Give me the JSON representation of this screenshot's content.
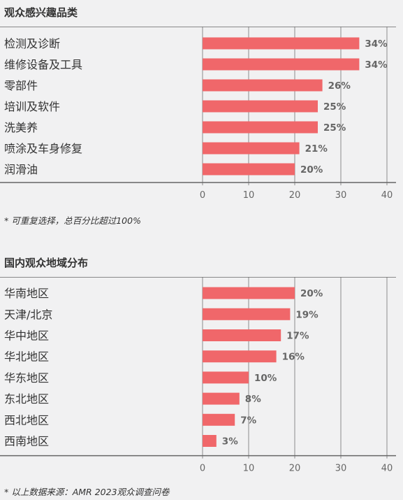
{
  "colors": {
    "bar": "#f0676a",
    "axis": "#666666",
    "grid": "#8c8c8c",
    "label": "#333333"
  },
  "chart_data": [
    {
      "type": "bar",
      "orientation": "horizontal",
      "title": "观众感兴趣品类",
      "categories": [
        "检测及诊断",
        "维修设备及工具",
        "零部件",
        "培训及软件",
        "洗美养",
        "喷涂及车身修复",
        "润滑油"
      ],
      "values": [
        34,
        34,
        26,
        25,
        25,
        21,
        20
      ],
      "data_labels": [
        "34%",
        "34%",
        "26%",
        "25%",
        "25%",
        "21%",
        "20%"
      ],
      "xlim": [
        0,
        40
      ],
      "xticks": [
        0,
        10,
        20,
        30,
        40
      ],
      "grid": true,
      "note": "* 可重复选择，总百分比超过100%"
    },
    {
      "type": "bar",
      "orientation": "horizontal",
      "title": "国内观众地域分布",
      "categories": [
        "华南地区",
        "天津/北京",
        "华中地区",
        "华北地区",
        "华东地区",
        "东北地区",
        "西北地区",
        "西南地区"
      ],
      "values": [
        20,
        19,
        17,
        16,
        10,
        8,
        7,
        3
      ],
      "data_labels": [
        "20%",
        "19%",
        "17%",
        "16%",
        "10%",
        "8%",
        "7%",
        "3%"
      ],
      "xlim": [
        0,
        40
      ],
      "xticks": [
        0,
        10,
        20,
        30,
        40
      ],
      "grid": true,
      "note": "* 以上数据来源：AMR 2023观众调查问卷"
    }
  ]
}
